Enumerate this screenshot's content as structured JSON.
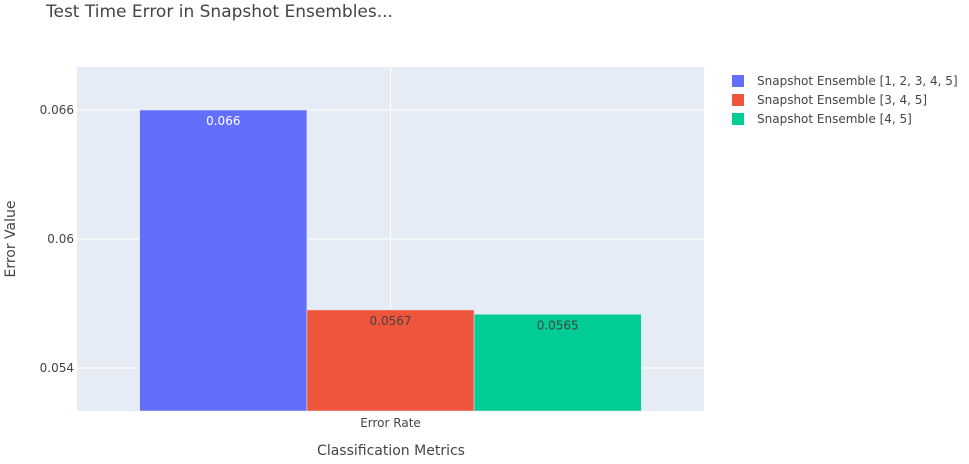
{
  "chart_data": {
    "type": "bar",
    "title": "Test Time Error in Snapshot Ensembles...",
    "xlabel": "Classification Metrics",
    "ylabel": "Error Value",
    "categories": [
      "Error Rate"
    ],
    "ylim": [
      0.052,
      0.068
    ],
    "yticks": [
      0.054,
      0.06,
      0.066
    ],
    "ytick_labels": [
      "0.054",
      "0.06",
      "0.066"
    ],
    "grid": true,
    "legend_position": "top-right",
    "series": [
      {
        "name": "Snapshot Ensemble [1, 2, 3, 4, 5]",
        "values": [
          0.066
        ],
        "label": "0.066",
        "color": "#636efa",
        "label_color": "#ffffff"
      },
      {
        "name": "Snapshot Ensemble [3, 4, 5]",
        "values": [
          0.0567
        ],
        "label": "0.0567",
        "color": "#ef553b",
        "label_color": "#444444"
      },
      {
        "name": "Snapshot Ensemble [4, 5]",
        "values": [
          0.0565
        ],
        "label": "0.0565",
        "color": "#00cc96",
        "label_color": "#444444"
      }
    ],
    "plot_background": "#e5ecf6",
    "grid_color": "#ffffff"
  }
}
